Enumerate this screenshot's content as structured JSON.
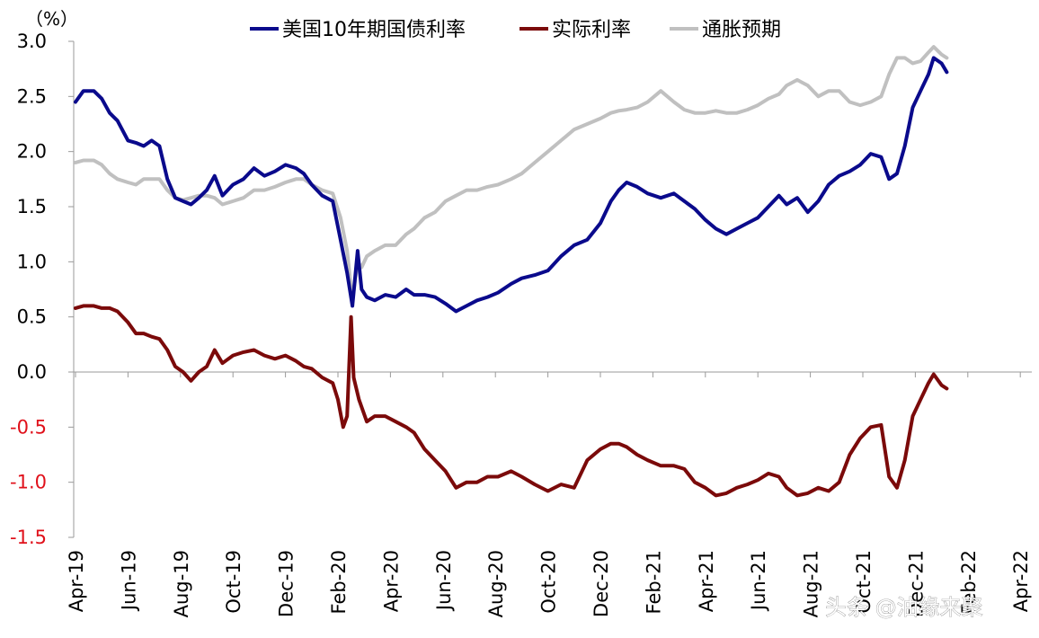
{
  "chart_data": {
    "type": "line",
    "unit_label": "（%）",
    "ylim": [
      -1.5,
      3.0
    ],
    "y_ticks": [
      "3.0",
      "2.5",
      "2.0",
      "1.5",
      "1.0",
      "0.5",
      "0.0",
      "-0.5",
      "-1.0",
      "-1.5"
    ],
    "x_ticks": [
      "Apr-19",
      "Jun-19",
      "Aug-19",
      "Oct-19",
      "Dec-19",
      "Feb-20",
      "Apr-20",
      "Jun-20",
      "Aug-20",
      "Oct-20",
      "Dec-20",
      "Feb-21",
      "Apr-21",
      "Jun-21",
      "Aug-21",
      "Oct-21",
      "Dec-21",
      "Feb-22",
      "Apr-22"
    ],
    "grid": false,
    "legend_position": "top",
    "series": [
      {
        "name": "美国10年期国债利率",
        "color": "#0a0a8c",
        "points": [
          [
            0,
            2.45
          ],
          [
            0.3,
            2.55
          ],
          [
            0.7,
            2.55
          ],
          [
            1.0,
            2.48
          ],
          [
            1.3,
            2.35
          ],
          [
            1.6,
            2.28
          ],
          [
            2.0,
            2.1
          ],
          [
            2.3,
            2.08
          ],
          [
            2.6,
            2.05
          ],
          [
            2.9,
            2.1
          ],
          [
            3.2,
            2.05
          ],
          [
            3.5,
            1.75
          ],
          [
            3.8,
            1.58
          ],
          [
            4.1,
            1.55
          ],
          [
            4.4,
            1.52
          ],
          [
            4.7,
            1.58
          ],
          [
            5.0,
            1.65
          ],
          [
            5.3,
            1.78
          ],
          [
            5.6,
            1.6
          ],
          [
            6.0,
            1.7
          ],
          [
            6.4,
            1.75
          ],
          [
            6.8,
            1.85
          ],
          [
            7.2,
            1.78
          ],
          [
            7.6,
            1.82
          ],
          [
            8.0,
            1.88
          ],
          [
            8.4,
            1.85
          ],
          [
            8.7,
            1.8
          ],
          [
            9.0,
            1.7
          ],
          [
            9.4,
            1.6
          ],
          [
            9.8,
            1.55
          ],
          [
            10.1,
            1.2
          ],
          [
            10.35,
            0.9
          ],
          [
            10.55,
            0.6
          ],
          [
            10.75,
            1.1
          ],
          [
            10.9,
            0.75
          ],
          [
            11.1,
            0.68
          ],
          [
            11.4,
            0.65
          ],
          [
            11.8,
            0.7
          ],
          [
            12.2,
            0.68
          ],
          [
            12.6,
            0.75
          ],
          [
            12.9,
            0.7
          ],
          [
            13.3,
            0.7
          ],
          [
            13.7,
            0.68
          ],
          [
            14.1,
            0.62
          ],
          [
            14.5,
            0.55
          ],
          [
            14.9,
            0.6
          ],
          [
            15.3,
            0.65
          ],
          [
            15.7,
            0.68
          ],
          [
            16.1,
            0.72
          ],
          [
            16.6,
            0.8
          ],
          [
            17.0,
            0.85
          ],
          [
            17.5,
            0.88
          ],
          [
            18.0,
            0.92
          ],
          [
            18.5,
            1.05
          ],
          [
            19.0,
            1.15
          ],
          [
            19.5,
            1.2
          ],
          [
            20.0,
            1.35
          ],
          [
            20.4,
            1.55
          ],
          [
            20.7,
            1.65
          ],
          [
            21.0,
            1.72
          ],
          [
            21.4,
            1.68
          ],
          [
            21.8,
            1.62
          ],
          [
            22.3,
            1.58
          ],
          [
            22.8,
            1.62
          ],
          [
            23.2,
            1.55
          ],
          [
            23.6,
            1.48
          ],
          [
            24.0,
            1.38
          ],
          [
            24.4,
            1.3
          ],
          [
            24.8,
            1.25
          ],
          [
            25.2,
            1.3
          ],
          [
            25.6,
            1.35
          ],
          [
            26.0,
            1.4
          ],
          [
            26.4,
            1.5
          ],
          [
            26.8,
            1.6
          ],
          [
            27.1,
            1.52
          ],
          [
            27.5,
            1.58
          ],
          [
            27.9,
            1.45
          ],
          [
            28.3,
            1.55
          ],
          [
            28.7,
            1.7
          ],
          [
            29.1,
            1.78
          ],
          [
            29.5,
            1.82
          ],
          [
            29.9,
            1.88
          ],
          [
            30.3,
            1.98
          ],
          [
            30.7,
            1.95
          ],
          [
            31.0,
            1.75
          ],
          [
            31.3,
            1.8
          ],
          [
            31.6,
            2.05
          ],
          [
            31.9,
            2.4
          ],
          [
            32.2,
            2.55
          ],
          [
            32.5,
            2.7
          ],
          [
            32.7,
            2.85
          ],
          [
            33.0,
            2.8
          ],
          [
            33.2,
            2.72
          ]
        ]
      },
      {
        "name": "实际利率",
        "color": "#7b0a0a",
        "points": [
          [
            0,
            0.58
          ],
          [
            0.3,
            0.6
          ],
          [
            0.7,
            0.6
          ],
          [
            1.0,
            0.58
          ],
          [
            1.3,
            0.58
          ],
          [
            1.6,
            0.55
          ],
          [
            2.0,
            0.45
          ],
          [
            2.3,
            0.35
          ],
          [
            2.6,
            0.35
          ],
          [
            2.9,
            0.32
          ],
          [
            3.2,
            0.3
          ],
          [
            3.5,
            0.2
          ],
          [
            3.8,
            0.05
          ],
          [
            4.1,
            0.0
          ],
          [
            4.4,
            -0.08
          ],
          [
            4.7,
            0.0
          ],
          [
            5.0,
            0.05
          ],
          [
            5.3,
            0.2
          ],
          [
            5.6,
            0.08
          ],
          [
            6.0,
            0.15
          ],
          [
            6.4,
            0.18
          ],
          [
            6.8,
            0.2
          ],
          [
            7.2,
            0.15
          ],
          [
            7.6,
            0.12
          ],
          [
            8.0,
            0.15
          ],
          [
            8.4,
            0.1
          ],
          [
            8.7,
            0.05
          ],
          [
            9.0,
            0.03
          ],
          [
            9.4,
            -0.05
          ],
          [
            9.8,
            -0.1
          ],
          [
            10.0,
            -0.25
          ],
          [
            10.2,
            -0.5
          ],
          [
            10.35,
            -0.4
          ],
          [
            10.5,
            0.5
          ],
          [
            10.6,
            -0.05
          ],
          [
            10.8,
            -0.25
          ],
          [
            11.1,
            -0.45
          ],
          [
            11.4,
            -0.4
          ],
          [
            11.8,
            -0.4
          ],
          [
            12.2,
            -0.45
          ],
          [
            12.6,
            -0.5
          ],
          [
            12.9,
            -0.55
          ],
          [
            13.3,
            -0.7
          ],
          [
            13.7,
            -0.8
          ],
          [
            14.1,
            -0.9
          ],
          [
            14.5,
            -1.05
          ],
          [
            14.9,
            -1.0
          ],
          [
            15.3,
            -1.0
          ],
          [
            15.7,
            -0.95
          ],
          [
            16.1,
            -0.95
          ],
          [
            16.6,
            -0.9
          ],
          [
            17.0,
            -0.95
          ],
          [
            17.5,
            -1.02
          ],
          [
            18.0,
            -1.08
          ],
          [
            18.5,
            -1.02
          ],
          [
            19.0,
            -1.05
          ],
          [
            19.5,
            -0.8
          ],
          [
            20.0,
            -0.7
          ],
          [
            20.4,
            -0.65
          ],
          [
            20.7,
            -0.65
          ],
          [
            21.0,
            -0.68
          ],
          [
            21.4,
            -0.75
          ],
          [
            21.8,
            -0.8
          ],
          [
            22.3,
            -0.85
          ],
          [
            22.8,
            -0.85
          ],
          [
            23.2,
            -0.88
          ],
          [
            23.6,
            -1.0
          ],
          [
            24.0,
            -1.05
          ],
          [
            24.4,
            -1.12
          ],
          [
            24.8,
            -1.1
          ],
          [
            25.2,
            -1.05
          ],
          [
            25.6,
            -1.02
          ],
          [
            26.0,
            -0.98
          ],
          [
            26.4,
            -0.92
          ],
          [
            26.8,
            -0.95
          ],
          [
            27.1,
            -1.05
          ],
          [
            27.5,
            -1.12
          ],
          [
            27.9,
            -1.1
          ],
          [
            28.3,
            -1.05
          ],
          [
            28.7,
            -1.08
          ],
          [
            29.1,
            -1.0
          ],
          [
            29.5,
            -0.75
          ],
          [
            29.9,
            -0.6
          ],
          [
            30.3,
            -0.5
          ],
          [
            30.7,
            -0.48
          ],
          [
            31.0,
            -0.95
          ],
          [
            31.3,
            -1.05
          ],
          [
            31.6,
            -0.8
          ],
          [
            31.9,
            -0.4
          ],
          [
            32.2,
            -0.25
          ],
          [
            32.5,
            -0.1
          ],
          [
            32.7,
            -0.02
          ],
          [
            33.0,
            -0.12
          ],
          [
            33.2,
            -0.15
          ]
        ]
      },
      {
        "name": "通胀预期",
        "color": "#c0c0c0",
        "points": [
          [
            0,
            1.9
          ],
          [
            0.3,
            1.92
          ],
          [
            0.7,
            1.92
          ],
          [
            1.0,
            1.88
          ],
          [
            1.3,
            1.8
          ],
          [
            1.6,
            1.75
          ],
          [
            2.0,
            1.72
          ],
          [
            2.3,
            1.7
          ],
          [
            2.6,
            1.75
          ],
          [
            2.9,
            1.75
          ],
          [
            3.2,
            1.75
          ],
          [
            3.5,
            1.65
          ],
          [
            3.8,
            1.58
          ],
          [
            4.1,
            1.56
          ],
          [
            4.4,
            1.58
          ],
          [
            4.7,
            1.6
          ],
          [
            5.0,
            1.6
          ],
          [
            5.3,
            1.58
          ],
          [
            5.6,
            1.52
          ],
          [
            6.0,
            1.55
          ],
          [
            6.4,
            1.58
          ],
          [
            6.8,
            1.65
          ],
          [
            7.2,
            1.65
          ],
          [
            7.6,
            1.68
          ],
          [
            8.0,
            1.72
          ],
          [
            8.4,
            1.75
          ],
          [
            8.7,
            1.75
          ],
          [
            9.0,
            1.7
          ],
          [
            9.4,
            1.65
          ],
          [
            9.8,
            1.62
          ],
          [
            10.1,
            1.4
          ],
          [
            10.35,
            1.1
          ],
          [
            10.55,
            0.65
          ],
          [
            10.75,
            1.0
          ],
          [
            10.9,
            0.95
          ],
          [
            11.1,
            1.05
          ],
          [
            11.4,
            1.1
          ],
          [
            11.8,
            1.15
          ],
          [
            12.2,
            1.15
          ],
          [
            12.6,
            1.25
          ],
          [
            12.9,
            1.3
          ],
          [
            13.3,
            1.4
          ],
          [
            13.7,
            1.45
          ],
          [
            14.1,
            1.55
          ],
          [
            14.5,
            1.6
          ],
          [
            14.9,
            1.65
          ],
          [
            15.3,
            1.65
          ],
          [
            15.7,
            1.68
          ],
          [
            16.1,
            1.7
          ],
          [
            16.6,
            1.75
          ],
          [
            17.0,
            1.8
          ],
          [
            17.5,
            1.9
          ],
          [
            18.0,
            2.0
          ],
          [
            18.5,
            2.1
          ],
          [
            19.0,
            2.2
          ],
          [
            19.5,
            2.25
          ],
          [
            20.0,
            2.3
          ],
          [
            20.4,
            2.35
          ],
          [
            20.7,
            2.37
          ],
          [
            21.0,
            2.38
          ],
          [
            21.4,
            2.4
          ],
          [
            21.8,
            2.45
          ],
          [
            22.3,
            2.55
          ],
          [
            22.8,
            2.45
          ],
          [
            23.2,
            2.38
          ],
          [
            23.6,
            2.35
          ],
          [
            24.0,
            2.35
          ],
          [
            24.4,
            2.37
          ],
          [
            24.8,
            2.35
          ],
          [
            25.2,
            2.35
          ],
          [
            25.6,
            2.38
          ],
          [
            26.0,
            2.42
          ],
          [
            26.4,
            2.48
          ],
          [
            26.8,
            2.52
          ],
          [
            27.1,
            2.6
          ],
          [
            27.5,
            2.65
          ],
          [
            27.9,
            2.6
          ],
          [
            28.3,
            2.5
          ],
          [
            28.7,
            2.55
          ],
          [
            29.1,
            2.55
          ],
          [
            29.5,
            2.45
          ],
          [
            29.9,
            2.42
          ],
          [
            30.3,
            2.45
          ],
          [
            30.7,
            2.5
          ],
          [
            31.0,
            2.7
          ],
          [
            31.3,
            2.85
          ],
          [
            31.6,
            2.85
          ],
          [
            31.9,
            2.8
          ],
          [
            32.2,
            2.82
          ],
          [
            32.5,
            2.9
          ],
          [
            32.7,
            2.95
          ],
          [
            33.0,
            2.88
          ],
          [
            33.2,
            2.85
          ]
        ]
      }
    ]
  },
  "watermark": "头条 @油缘来聚"
}
